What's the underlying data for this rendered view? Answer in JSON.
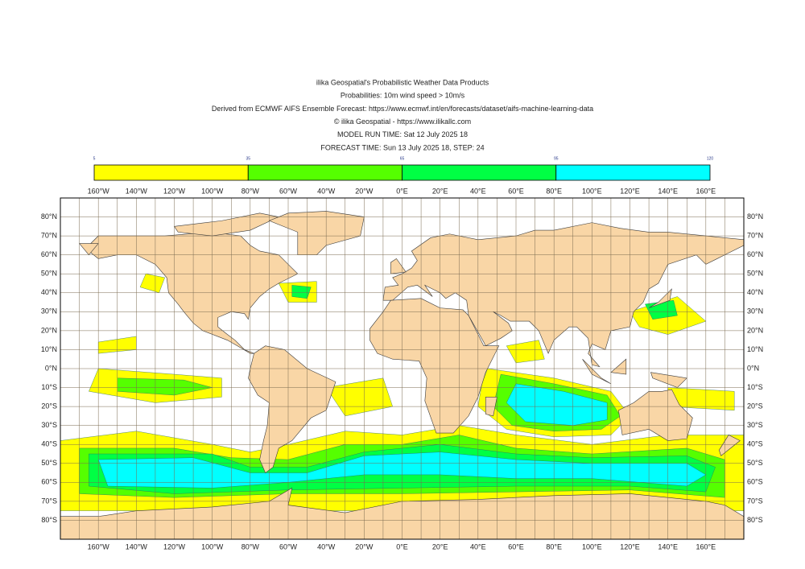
{
  "header": {
    "lines": [
      "ilika Geospatial's Probabilistic Weather Data Products",
      "Probabilities: 10m wind speed > 10m/s",
      "Derived from ECMWF AIFS Ensemble Forecast: https://www.ecmwf.int/en/forecasts/dataset/aifs-machine-learning-data",
      "© ilika Geospatial - https://www.ilikallc.com",
      "MODEL RUN TIME: Sat 12 July 2025 18",
      "FORECAST TIME: Sun 13 July 2025 18, STEP: 24"
    ]
  },
  "colorbar": {
    "levels": [
      5,
      35,
      65,
      95,
      120
    ],
    "colors": [
      "#ffff00",
      "#55ff00",
      "#00ff44",
      "#00ffff"
    ]
  },
  "map": {
    "xlim": [
      -180,
      180
    ],
    "ylim": [
      -90,
      90
    ],
    "xticks": [
      {
        "value": -160,
        "label": "160°W"
      },
      {
        "value": -140,
        "label": "140°W"
      },
      {
        "value": -120,
        "label": "120°W"
      },
      {
        "value": -100,
        "label": "100°W"
      },
      {
        "value": -80,
        "label": "80°W"
      },
      {
        "value": -60,
        "label": "60°W"
      },
      {
        "value": -40,
        "label": "40°W"
      },
      {
        "value": -20,
        "label": "20°W"
      },
      {
        "value": 0,
        "label": "0°E"
      },
      {
        "value": 20,
        "label": "20°E"
      },
      {
        "value": 40,
        "label": "40°E"
      },
      {
        "value": 60,
        "label": "60°E"
      },
      {
        "value": 80,
        "label": "80°E"
      },
      {
        "value": 100,
        "label": "100°E"
      },
      {
        "value": 120,
        "label": "120°E"
      },
      {
        "value": 140,
        "label": "140°E"
      },
      {
        "value": 160,
        "label": "160°E"
      }
    ],
    "yticks": [
      {
        "value": 80,
        "label": "80°N"
      },
      {
        "value": 70,
        "label": "70°N"
      },
      {
        "value": 60,
        "label": "60°N"
      },
      {
        "value": 50,
        "label": "50°N"
      },
      {
        "value": 40,
        "label": "40°N"
      },
      {
        "value": 30,
        "label": "30°N"
      },
      {
        "value": 20,
        "label": "20°N"
      },
      {
        "value": 10,
        "label": "10°N"
      },
      {
        "value": 0,
        "label": "0°N"
      },
      {
        "value": -10,
        "label": "10°S"
      },
      {
        "value": -20,
        "label": "20°S"
      },
      {
        "value": -30,
        "label": "30°S"
      },
      {
        "value": -40,
        "label": "40°S"
      },
      {
        "value": -50,
        "label": "50°S"
      },
      {
        "value": -60,
        "label": "60°S"
      },
      {
        "value": -70,
        "label": "70°S"
      },
      {
        "value": -80,
        "label": "80°S"
      }
    ],
    "xgrid": [
      -170,
      -150,
      -130,
      -110,
      -90,
      -70,
      -50,
      -30,
      -10,
      10,
      30,
      50,
      70,
      90,
      110,
      130,
      150,
      170
    ]
  }
}
